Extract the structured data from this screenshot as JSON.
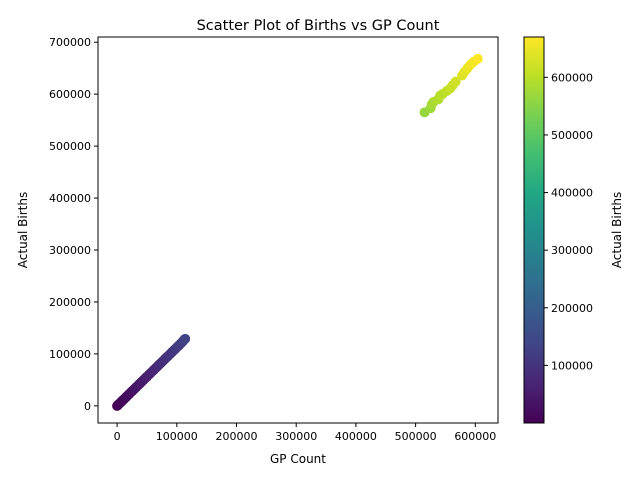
{
  "chart_data": {
    "type": "scatter",
    "title": "Scatter Plot of Births vs GP Count",
    "xlabel": "GP Count",
    "ylabel": "Actual Births",
    "xlim": [
      -32000,
      638000
    ],
    "ylim": [
      -33000,
      710000
    ],
    "xticks": [
      0,
      100000,
      200000,
      300000,
      400000,
      500000,
      600000
    ],
    "xtick_labels": [
      "0",
      "100000",
      "200000",
      "300000",
      "400000",
      "500000",
      "600000"
    ],
    "yticks": [
      0,
      100000,
      200000,
      300000,
      400000,
      500000,
      600000,
      700000
    ],
    "ytick_labels": [
      "0",
      "100000",
      "200000",
      "300000",
      "400000",
      "500000",
      "600000",
      "700000"
    ],
    "colormap": "viridis",
    "grid": false,
    "colorbar": {
      "label": "Actual Births",
      "range": [
        0,
        670000
      ],
      "ticks": [
        100000,
        200000,
        300000,
        400000,
        500000,
        600000
      ],
      "tick_labels": [
        "100000",
        "200000",
        "300000",
        "400000",
        "500000",
        "600000"
      ]
    },
    "points": [
      {
        "x": 0,
        "y": 0
      },
      {
        "x": 1000,
        "y": 1100
      },
      {
        "x": 2500,
        "y": 2800
      },
      {
        "x": 4000,
        "y": 4500
      },
      {
        "x": 6000,
        "y": 6700
      },
      {
        "x": 8000,
        "y": 9000
      },
      {
        "x": 10000,
        "y": 11300
      },
      {
        "x": 12500,
        "y": 14000
      },
      {
        "x": 15000,
        "y": 16900
      },
      {
        "x": 17500,
        "y": 19700
      },
      {
        "x": 20000,
        "y": 22500
      },
      {
        "x": 23000,
        "y": 25900
      },
      {
        "x": 26000,
        "y": 29200
      },
      {
        "x": 29000,
        "y": 32600
      },
      {
        "x": 32000,
        "y": 36000
      },
      {
        "x": 35000,
        "y": 39400
      },
      {
        "x": 38000,
        "y": 42700
      },
      {
        "x": 41000,
        "y": 46100
      },
      {
        "x": 44000,
        "y": 49500
      },
      {
        "x": 47000,
        "y": 52900
      },
      {
        "x": 50000,
        "y": 56200
      },
      {
        "x": 53000,
        "y": 59600
      },
      {
        "x": 56000,
        "y": 63000
      },
      {
        "x": 59000,
        "y": 66400
      },
      {
        "x": 62000,
        "y": 69700
      },
      {
        "x": 65000,
        "y": 73100
      },
      {
        "x": 68000,
        "y": 76500
      },
      {
        "x": 71000,
        "y": 79900
      },
      {
        "x": 74000,
        "y": 83200
      },
      {
        "x": 77000,
        "y": 86600
      },
      {
        "x": 80000,
        "y": 90000
      },
      {
        "x": 83000,
        "y": 93400
      },
      {
        "x": 86000,
        "y": 96700
      },
      {
        "x": 89000,
        "y": 100100
      },
      {
        "x": 92000,
        "y": 103500
      },
      {
        "x": 95000,
        "y": 106900
      },
      {
        "x": 98000,
        "y": 110200
      },
      {
        "x": 101000,
        "y": 113600
      },
      {
        "x": 104000,
        "y": 117000
      },
      {
        "x": 107000,
        "y": 120400
      },
      {
        "x": 110000,
        "y": 124000
      },
      {
        "x": 112000,
        "y": 127000
      },
      {
        "x": 114000,
        "y": 129000
      },
      {
        "x": 515000,
        "y": 565000
      },
      {
        "x": 525000,
        "y": 573000
      },
      {
        "x": 527000,
        "y": 580000
      },
      {
        "x": 530000,
        "y": 585000
      },
      {
        "x": 538000,
        "y": 590000
      },
      {
        "x": 541000,
        "y": 597000
      },
      {
        "x": 545000,
        "y": 600000
      },
      {
        "x": 552000,
        "y": 606000
      },
      {
        "x": 558000,
        "y": 611000
      },
      {
        "x": 562000,
        "y": 617000
      },
      {
        "x": 567000,
        "y": 624000
      },
      {
        "x": 578000,
        "y": 636000
      },
      {
        "x": 582000,
        "y": 643000
      },
      {
        "x": 587000,
        "y": 650000
      },
      {
        "x": 592000,
        "y": 657000
      },
      {
        "x": 597000,
        "y": 662000
      },
      {
        "x": 604000,
        "y": 668000
      }
    ]
  }
}
